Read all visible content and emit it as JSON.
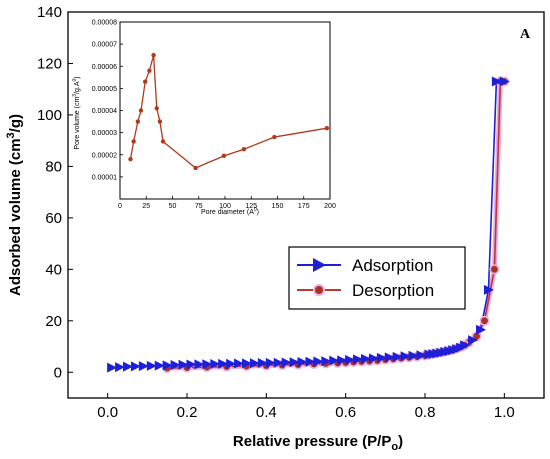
{
  "chart_data": [
    {
      "type": "line",
      "panel_label": "A",
      "xlabel": "Relative pressure (P/P",
      "xlabel_sub": "o",
      "xlabel_end": ")",
      "ylabel": "Adsorbed volume (cm",
      "ylabel_sup": "3",
      "ylabel_end": "/g)",
      "xlim": [
        -0.1,
        1.1
      ],
      "ylim": [
        -10,
        140
      ],
      "xticks": [
        0.0,
        0.2,
        0.4,
        0.6,
        0.8,
        1.0
      ],
      "xtick_labels": [
        "0.0",
        "0.2",
        "0.4",
        "0.6",
        "0.8",
        "1.0"
      ],
      "yticks": [
        0,
        20,
        40,
        60,
        80,
        100,
        120,
        140
      ],
      "ytick_labels": [
        "0",
        "20",
        "40",
        "60",
        "80",
        "100",
        "120",
        "140"
      ],
      "legend_position": "center-right",
      "grid": false,
      "series": [
        {
          "name": "Adsorption",
          "color": "#1f1fd8",
          "marker": "triangle-right",
          "x": [
            0.01,
            0.03,
            0.05,
            0.07,
            0.09,
            0.11,
            0.13,
            0.15,
            0.17,
            0.19,
            0.21,
            0.23,
            0.25,
            0.27,
            0.29,
            0.31,
            0.33,
            0.35,
            0.37,
            0.39,
            0.41,
            0.43,
            0.45,
            0.47,
            0.49,
            0.51,
            0.53,
            0.55,
            0.57,
            0.59,
            0.61,
            0.63,
            0.65,
            0.67,
            0.69,
            0.71,
            0.73,
            0.75,
            0.77,
            0.79,
            0.81,
            0.82,
            0.83,
            0.84,
            0.85,
            0.86,
            0.87,
            0.88,
            0.89,
            0.9,
            0.92,
            0.94,
            0.96,
            0.98,
            1.0
          ],
          "y": [
            1.8,
            2.0,
            2.2,
            2.3,
            2.4,
            2.5,
            2.6,
            2.7,
            2.8,
            2.9,
            3.0,
            3.05,
            3.1,
            3.2,
            3.25,
            3.3,
            3.4,
            3.45,
            3.5,
            3.6,
            3.65,
            3.7,
            3.8,
            3.9,
            4.0,
            4.1,
            4.2,
            4.3,
            4.5,
            4.6,
            4.8,
            5.0,
            5.2,
            5.4,
            5.6,
            5.8,
            6.0,
            6.2,
            6.4,
            6.6,
            6.9,
            7.1,
            7.3,
            7.6,
            7.9,
            8.2,
            8.6,
            9.0,
            9.6,
            10.5,
            12.5,
            16.5,
            32.0,
            113.0,
            113.0
          ]
        },
        {
          "name": "Desorption",
          "color": "#c0392b",
          "marker": "circle",
          "x": [
            1.0,
            0.99,
            0.975,
            0.95,
            0.93,
            0.91,
            0.9,
            0.89,
            0.88,
            0.87,
            0.86,
            0.85,
            0.84,
            0.83,
            0.82,
            0.81,
            0.8,
            0.78,
            0.76,
            0.74,
            0.72,
            0.7,
            0.68,
            0.66,
            0.64,
            0.62,
            0.6,
            0.58,
            0.55,
            0.52,
            0.48,
            0.44,
            0.4,
            0.35,
            0.3,
            0.25,
            0.2,
            0.15
          ],
          "y": [
            113.0,
            113.0,
            40.0,
            20.0,
            14.0,
            11.5,
            10.5,
            9.8,
            9.3,
            8.8,
            8.4,
            8.0,
            7.7,
            7.4,
            7.1,
            6.8,
            6.5,
            6.1,
            5.8,
            5.5,
            5.2,
            4.9,
            4.6,
            4.4,
            4.2,
            4.0,
            3.8,
            3.6,
            3.4,
            3.2,
            3.0,
            2.8,
            2.6,
            2.4,
            2.2,
            2.0,
            1.8,
            1.6
          ]
        }
      ]
    },
    {
      "type": "line",
      "xlabel": "Pore diameter (A",
      "xlabel_sup": "0",
      "xlabel_end": ")",
      "ylabel": "Pore volume (cm",
      "ylabel_sup": "3",
      "ylabel_end": "/g.A",
      "ylabel_sup2": "0",
      "ylabel_end2": ")",
      "xlim": [
        0,
        200
      ],
      "ylim": [
        0.0,
        8e-05
      ],
      "xticks": [
        0,
        25,
        50,
        75,
        100,
        125,
        150,
        175,
        200
      ],
      "xtick_labels": [
        "0",
        "25",
        "50",
        "75",
        "100",
        "125",
        "150",
        "175",
        "200"
      ],
      "yticks": [
        1e-05,
        2e-05,
        3e-05,
        4e-05,
        5e-05,
        6e-05,
        7e-05,
        8e-05
      ],
      "ytick_labels": [
        "0.00001",
        "0.00002",
        "0.00003",
        "0.00004",
        "0.00005",
        "0.00006",
        "0.00007",
        "0.00008"
      ],
      "grid": false,
      "series": [
        {
          "color": "#b03a1e",
          "marker": "circle",
          "x": [
            10,
            13,
            17,
            20,
            24,
            28,
            32,
            35,
            38,
            41,
            72,
            99,
            118,
            147,
            197
          ],
          "y": [
            1.8e-05,
            2.6e-05,
            3.5e-05,
            4e-05,
            5.3e-05,
            5.8e-05,
            6.5e-05,
            4.1e-05,
            3.5e-05,
            2.6e-05,
            1.4e-05,
            1.95e-05,
            2.25e-05,
            2.8e-05,
            3.2e-05
          ]
        }
      ]
    }
  ]
}
